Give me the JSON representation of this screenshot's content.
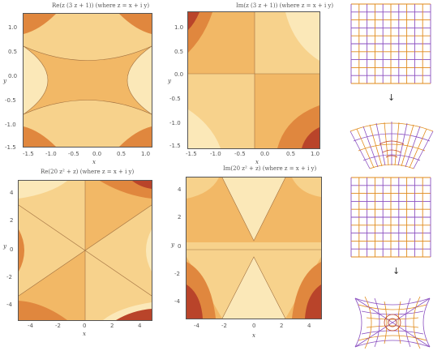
{
  "plots": [
    {
      "title": "Re(z (3 z + 1))  (where z = x + i y)",
      "xlabel": "x",
      "ylabel": "y",
      "xticks": [
        "-1.5",
        "-1.0",
        "-0.5",
        "0.0",
        "0.5",
        "1.0"
      ],
      "yticks": [
        "1.0",
        "0.5",
        "0.0",
        "-0.5",
        "-1.0",
        "-1.5"
      ]
    },
    {
      "title": "Im(z (3 z + 1))  (where z = x + i y)",
      "xlabel": "x",
      "ylabel": "y",
      "xticks": [
        "-1.5",
        "-1.0",
        "-0.5",
        "0.0",
        "0.5",
        "1.0"
      ],
      "yticks": [
        "1.0",
        "0.5",
        "0.0",
        "-0.5",
        "-1.0",
        "-1.5"
      ]
    },
    {
      "title": "Re(20 z² + z)  (where z = x + i y)",
      "xlabel": "x",
      "ylabel": "y",
      "xticks": [
        "-4",
        "-2",
        "0",
        "2",
        "4"
      ],
      "yticks": [
        "4",
        "2",
        "0",
        "-2",
        "-4"
      ]
    },
    {
      "title": "Im(20 z² + z)  (where z = x + i y)",
      "xlabel": "x",
      "ylabel": "y",
      "xticks": [
        "-4",
        "-2",
        "0",
        "2",
        "4"
      ],
      "yticks": [
        "4",
        "2",
        "0",
        "-2",
        "-4"
      ]
    }
  ],
  "colors": {
    "c1": "#fbe8b8",
    "c2": "#f7d28c",
    "c3": "#f2b866",
    "c4": "#e0873e",
    "c5": "#b9442a",
    "c6": "#8c1d1d",
    "grid": "#e08a1a",
    "grid2": "#8a4fc0"
  },
  "arrows": [
    "↓",
    "↓"
  ]
}
